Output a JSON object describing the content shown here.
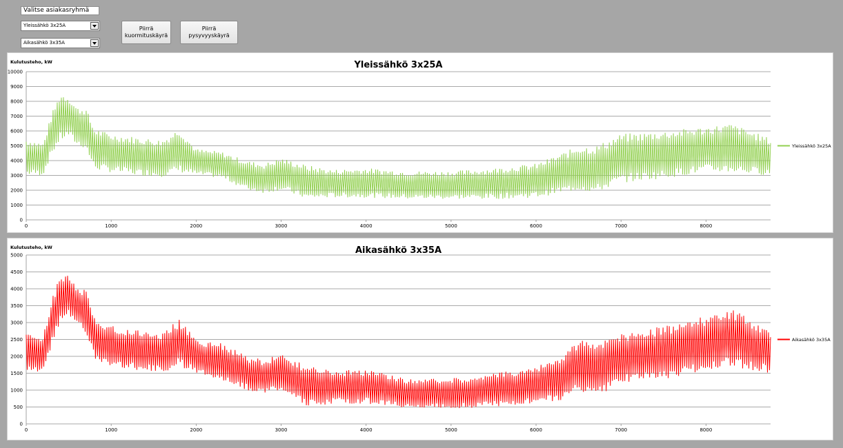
{
  "controls": {
    "group_label": "Valitse asiakasryhmä",
    "select1_value": "Yleissähkö 3x25A",
    "select2_value": "Aikasähkö 3x35A",
    "button_load_curve": "Piirrä\nkuormituskäyrä",
    "button_duration_curve": "Piirrä pysyvyyskäyrä"
  },
  "chart_data": [
    {
      "type": "line",
      "title": "Yleissähkö 3x25A",
      "ylabel": "Kulutusteho, kW",
      "xlabel": "",
      "xlim": [
        0,
        8760
      ],
      "ylim": [
        0,
        10000
      ],
      "xticks": [
        0,
        1000,
        2000,
        3000,
        4000,
        5000,
        6000,
        7000,
        8000
      ],
      "yticks": [
        0,
        1000,
        2000,
        3000,
        4000,
        5000,
        6000,
        7000,
        8000,
        9000,
        10000
      ],
      "grid": true,
      "legend_position": "right",
      "color": "#92d050",
      "series": [
        {
          "name": "Yleissähkö 3x25A",
          "envelope_x": [
            0,
            200,
            300,
            400,
            500,
            600,
            700,
            800,
            1000,
            1300,
            1600,
            1800,
            2000,
            2300,
            2600,
            2800,
            3000,
            3300,
            3600,
            4000,
            4500,
            5000,
            5500,
            6000,
            6300,
            6500,
            6700,
            7000,
            7500,
            8000,
            8300,
            8760
          ],
          "envelope_low": [
            3000,
            3000,
            4400,
            5300,
            5600,
            5000,
            4800,
            3400,
            3200,
            3000,
            2900,
            3200,
            3000,
            2800,
            2000,
            1800,
            2000,
            1400,
            1500,
            1500,
            1400,
            1400,
            1400,
            1500,
            1800,
            2000,
            1800,
            2500,
            2800,
            3200,
            3200,
            3000
          ],
          "envelope_high": [
            5500,
            5200,
            7200,
            8600,
            8400,
            7600,
            7600,
            6200,
            5800,
            5600,
            5400,
            6200,
            4800,
            4600,
            4000,
            3800,
            4200,
            3700,
            3400,
            3500,
            3300,
            3300,
            3500,
            3800,
            4500,
            5000,
            5000,
            5800,
            6000,
            6300,
            6500,
            5500
          ]
        }
      ]
    },
    {
      "type": "line",
      "title": "Aikasähkö 3x35A",
      "ylabel": "Kulutusteho, kW",
      "xlabel": "",
      "xlim": [
        0,
        8760
      ],
      "ylim": [
        0,
        5000
      ],
      "xticks": [
        0,
        1000,
        2000,
        3000,
        4000,
        5000,
        6000,
        7000,
        8000
      ],
      "yticks": [
        0,
        500,
        1000,
        1500,
        2000,
        2500,
        3000,
        3500,
        4000,
        4500,
        5000
      ],
      "grid": true,
      "legend_position": "right",
      "color": "#ff0000",
      "series": [
        {
          "name": "Aikasähkö 3x35A",
          "envelope_x": [
            0,
            200,
            300,
            400,
            500,
            600,
            700,
            800,
            1000,
            1300,
            1600,
            1800,
            2000,
            2300,
            2600,
            2800,
            3000,
            3300,
            3600,
            4000,
            4500,
            5000,
            5500,
            6000,
            6300,
            6500,
            6700,
            7000,
            7500,
            8000,
            8300,
            8760
          ],
          "envelope_low": [
            1500,
            1500,
            2300,
            3000,
            3200,
            2900,
            2700,
            1900,
            1700,
            1600,
            1500,
            1700,
            1500,
            1300,
            1000,
            900,
            1000,
            500,
            600,
            600,
            450,
            450,
            500,
            600,
            700,
            1000,
            800,
            1200,
            1300,
            1600,
            1700,
            1500
          ],
          "envelope_high": [
            2700,
            2600,
            3700,
            4400,
            4500,
            4000,
            4000,
            3200,
            2900,
            2800,
            2700,
            3100,
            2500,
            2400,
            2000,
            1900,
            2100,
            1700,
            1600,
            1600,
            1350,
            1350,
            1500,
            1700,
            2000,
            2500,
            2400,
            2700,
            2900,
            3200,
            3400,
            2800
          ]
        }
      ]
    }
  ]
}
